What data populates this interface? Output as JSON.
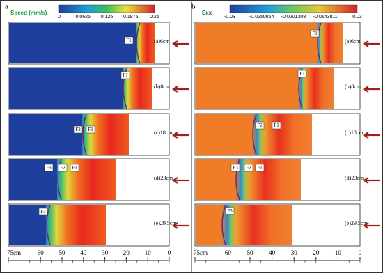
{
  "panels": [
    {
      "label": "a",
      "colorbar": {
        "title": "Speed (mm/s)",
        "ticks": [
          "0",
          "0.0625",
          "0.125",
          "0.1875",
          "0.25"
        ]
      },
      "rows": [
        {
          "label": "(a)6cm",
          "faults": [
            "F1"
          ]
        },
        {
          "label": "(b)8cm",
          "faults": [
            "F1"
          ]
        },
        {
          "label": "(c)18cm",
          "faults": [
            "F2",
            "F1"
          ]
        },
        {
          "label": "(d)23cm",
          "faults": [
            "F3",
            "F2",
            "F1"
          ]
        },
        {
          "label": "(e)29.5cm",
          "faults": [
            "F3"
          ]
        }
      ],
      "axis_ticks": [
        "75cm",
        "60",
        "50",
        "40",
        "30",
        "20",
        "10",
        "0"
      ]
    },
    {
      "label": "b",
      "colorbar": {
        "title": "Exx",
        "ticks": [
          "-0.03",
          "-0.0250854",
          "-0.0201308",
          "-0.0143811",
          "0.03"
        ]
      },
      "rows": [
        {
          "label": "(a)6cm",
          "faults": [
            "F1"
          ]
        },
        {
          "label": "(b)8cm",
          "faults": [
            "F1"
          ]
        },
        {
          "label": "(c)18cm",
          "faults": [
            "F2",
            "F1"
          ]
        },
        {
          "label": "(d)23cm",
          "faults": [
            "F3",
            "F2",
            "F1"
          ]
        },
        {
          "label": "(e)29.5cm",
          "faults": [
            "F3"
          ]
        }
      ],
      "axis_ticks": [
        "75cm",
        "60",
        "50",
        "40",
        "30",
        "20",
        "10",
        "0"
      ]
    }
  ]
}
